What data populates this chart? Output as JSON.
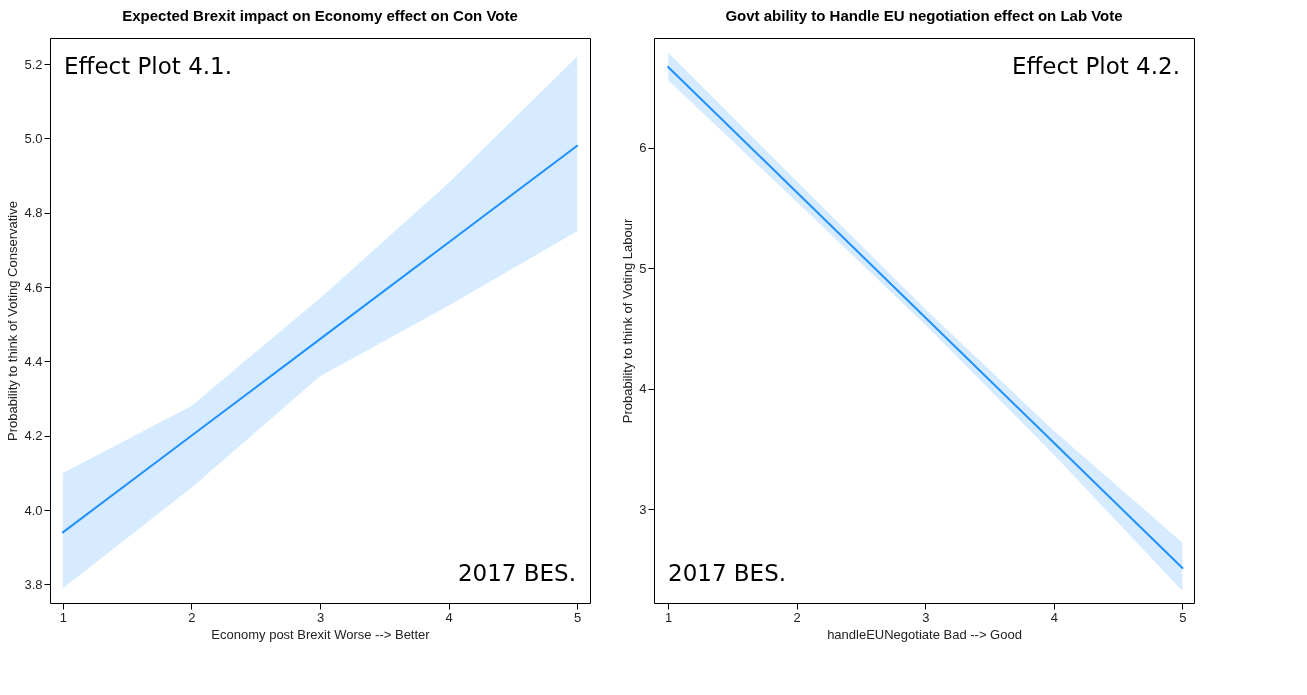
{
  "chart_data": [
    {
      "type": "line",
      "title": "Expected Brexit impact on Economy effect on Con Vote",
      "xlabel": "Economy post Brexit Worse --> Better",
      "ylabel": "Probability to think of Voting Conservative",
      "annotations": [
        "Effect Plot 4.1.",
        "2017 BES."
      ],
      "x": [
        1,
        2,
        3,
        4,
        5
      ],
      "xlim": [
        0.9,
        5.1
      ],
      "xticks": [
        1,
        2,
        3,
        4,
        5
      ],
      "ylim": [
        3.75,
        5.27
      ],
      "yticks": [
        3.8,
        {
          "value": 4,
          "label": "4.0"
        },
        4.2,
        4.4,
        4.6,
        4.8,
        {
          "value": 5,
          "label": "5.0"
        },
        5.2
      ],
      "series": [
        {
          "color": "#1e90ff",
          "values": [
            3.94,
            4.2,
            4.46,
            4.72,
            4.98
          ],
          "lower": [
            3.79,
            4.06,
            4.36,
            4.55,
            4.75
          ],
          "upper": [
            4.1,
            4.28,
            4.57,
            4.88,
            5.22
          ]
        }
      ]
    },
    {
      "type": "line",
      "title": "Govt ability to Handle EU negotiation effect on Lab Vote",
      "xlabel": "handleEUNegotiate Bad --> Good",
      "ylabel": "Probability to think of Voting Labour",
      "annotations": [
        "Effect Plot 4.2.",
        "2017 BES."
      ],
      "x": [
        1,
        2,
        3,
        4,
        5
      ],
      "xlim": [
        0.89,
        5.09
      ],
      "xticks": [
        1,
        2,
        3,
        4,
        5
      ],
      "ylim": [
        2.22,
        6.91
      ],
      "yticks": [
        3,
        4,
        5,
        6
      ],
      "series": [
        {
          "color": "#1e90ff",
          "values": [
            6.67,
            5.63,
            4.59,
            3.55,
            2.51
          ],
          "lower": [
            6.56,
            5.55,
            4.53,
            3.45,
            2.32
          ],
          "upper": [
            6.79,
            5.72,
            4.66,
            3.65,
            2.72
          ]
        }
      ]
    }
  ]
}
